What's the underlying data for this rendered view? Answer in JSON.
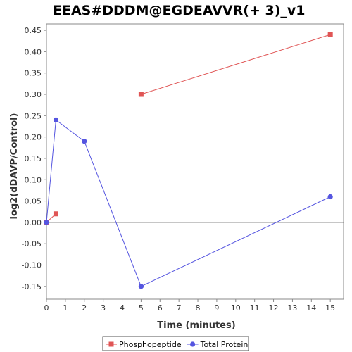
{
  "chart_data": {
    "type": "line",
    "title": "EEAS#DDDM@EGDEAVVR(+ 3)_v1",
    "xlabel": "Time (minutes)",
    "ylabel": "log2(dDAVP/Control)",
    "xlim": [
      0,
      15.7
    ],
    "ylim": [
      -0.18,
      0.465
    ],
    "x_ticks": [
      0,
      1,
      2,
      3,
      4,
      5,
      6,
      7,
      8,
      9,
      10,
      11,
      12,
      13,
      14,
      15
    ],
    "y_ticks": [
      -0.15,
      -0.1,
      -0.05,
      0.0,
      0.05,
      0.1,
      0.15,
      0.2,
      0.25,
      0.3,
      0.35,
      0.4,
      0.45
    ],
    "y_tick_labels": [
      "-0.15",
      "-0.10",
      "-0.05",
      "0.00",
      "0.05",
      "0.10",
      "0.15",
      "0.20",
      "0.25",
      "0.30",
      "0.35",
      "0.40",
      "0.45"
    ],
    "zero_line": true,
    "grid": false,
    "legend_position": "bottom",
    "series": [
      {
        "name": "Phosphopeptide",
        "color": "#e05555",
        "marker": "square",
        "segments": [
          [
            {
              "x": 0,
              "y": 0.0
            },
            {
              "x": 0.5,
              "y": 0.02
            }
          ],
          [
            {
              "x": 5,
              "y": 0.3
            },
            {
              "x": 15,
              "y": 0.44
            }
          ]
        ]
      },
      {
        "name": "Total Protein",
        "color": "#5555e0",
        "marker": "circle",
        "segments": [
          [
            {
              "x": 0,
              "y": 0.0
            },
            {
              "x": 0.5,
              "y": 0.24
            },
            {
              "x": 2,
              "y": 0.19
            },
            {
              "x": 5,
              "y": -0.15
            },
            {
              "x": 15,
              "y": 0.06
            }
          ]
        ]
      }
    ]
  }
}
